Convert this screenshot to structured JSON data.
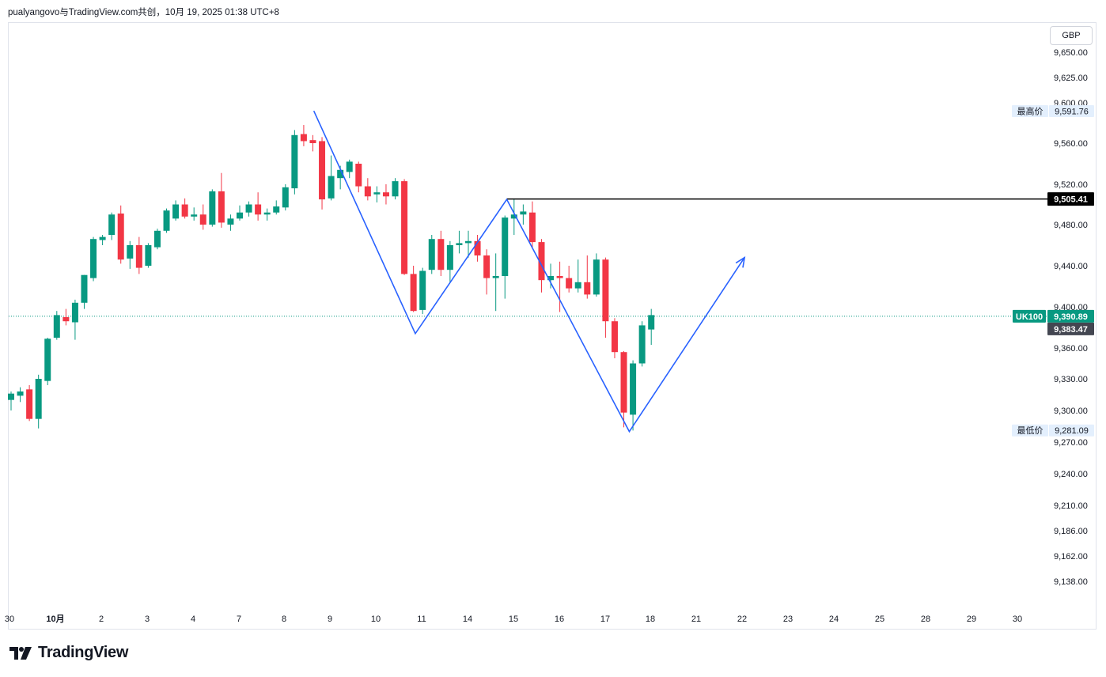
{
  "header": {
    "text": "pualyangovo与TradingView.com共创，10月 19, 2025 01:38 UTC+8"
  },
  "currency_label": "GBP",
  "logo_text": "TradingView",
  "colors": {
    "up": "#089981",
    "down": "#f23645",
    "drawing": "#2962ff",
    "hline": "#000000",
    "dotted_line": "#089981"
  },
  "chart_data": {
    "type": "candlestick",
    "symbol": "UK100",
    "currency": "GBP",
    "last_price": "9,390.89",
    "countdown_price": "9,383.47",
    "hline_price": "9,505.41",
    "high_label": "最高价",
    "high_value": "9,591.76",
    "low_label": "最低价",
    "low_value": "9,281.09",
    "y_ticks": [
      {
        "label": "9,650.00",
        "value": 9650
      },
      {
        "label": "9,625.00",
        "value": 9625
      },
      {
        "label": "9,600.00",
        "value": 9600
      },
      {
        "label": "9,560.00",
        "value": 9560
      },
      {
        "label": "9,520.00",
        "value": 9520
      },
      {
        "label": "9,480.00",
        "value": 9480
      },
      {
        "label": "9,440.00",
        "value": 9440
      },
      {
        "label": "9,400.00",
        "value": 9400
      },
      {
        "label": "9,360.00",
        "value": 9360
      },
      {
        "label": "9,330.00",
        "value": 9330
      },
      {
        "label": "9,300.00",
        "value": 9300
      },
      {
        "label": "9,270.00",
        "value": 9270
      },
      {
        "label": "9,240.00",
        "value": 9240
      },
      {
        "label": "9,210.00",
        "value": 9210
      },
      {
        "label": "9,186.00",
        "value": 9186
      },
      {
        "label": "9,162.00",
        "value": 9162
      },
      {
        "label": "9,138.00",
        "value": 9138
      }
    ],
    "x_ticks": [
      "30",
      "10月",
      "2",
      "3",
      "4",
      "7",
      "8",
      "9",
      "10",
      "11",
      "14",
      "15",
      "16",
      "17",
      "18",
      "21",
      "22",
      "23",
      "24",
      "25",
      "28",
      "29",
      "30"
    ],
    "candles": [
      {
        "o": 9310,
        "h": 9318,
        "l": 9300,
        "c": 9316
      },
      {
        "o": 9314,
        "h": 9322,
        "l": 9308,
        "c": 9318
      },
      {
        "o": 9320,
        "h": 9324,
        "l": 9290,
        "c": 9292
      },
      {
        "o": 9292,
        "h": 9334,
        "l": 9283,
        "c": 9330
      },
      {
        "o": 9328,
        "h": 9370,
        "l": 9324,
        "c": 9369
      },
      {
        "o": 9370,
        "h": 9396,
        "l": 9368,
        "c": 9392
      },
      {
        "o": 9390,
        "h": 9398,
        "l": 9382,
        "c": 9386
      },
      {
        "o": 9385,
        "h": 9407,
        "l": 9368,
        "c": 9404
      },
      {
        "o": 9404,
        "h": 9431,
        "l": 9398,
        "c": 9431
      },
      {
        "o": 9428,
        "h": 9468,
        "l": 9425,
        "c": 9466
      },
      {
        "o": 9465,
        "h": 9470,
        "l": 9460,
        "c": 9468
      },
      {
        "o": 9470,
        "h": 9492,
        "l": 9465,
        "c": 9490
      },
      {
        "o": 9491,
        "h": 9499,
        "l": 9442,
        "c": 9446
      },
      {
        "o": 9447,
        "h": 9464,
        "l": 9437,
        "c": 9460
      },
      {
        "o": 9460,
        "h": 9468,
        "l": 9432,
        "c": 9438
      },
      {
        "o": 9440,
        "h": 9462,
        "l": 9438,
        "c": 9460
      },
      {
        "o": 9458,
        "h": 9476,
        "l": 9456,
        "c": 9474
      },
      {
        "o": 9474,
        "h": 9496,
        "l": 9472,
        "c": 9494
      },
      {
        "o": 9486,
        "h": 9504,
        "l": 9484,
        "c": 9500
      },
      {
        "o": 9500,
        "h": 9506,
        "l": 9486,
        "c": 9488
      },
      {
        "o": 9488,
        "h": 9497,
        "l": 9484,
        "c": 9490
      },
      {
        "o": 9490,
        "h": 9500,
        "l": 9475,
        "c": 9480
      },
      {
        "o": 9480,
        "h": 9515,
        "l": 9478,
        "c": 9513
      },
      {
        "o": 9513,
        "h": 9531,
        "l": 9477,
        "c": 9482
      },
      {
        "o": 9480,
        "h": 9490,
        "l": 9474,
        "c": 9486
      },
      {
        "o": 9486,
        "h": 9499,
        "l": 9484,
        "c": 9492
      },
      {
        "o": 9492,
        "h": 9503,
        "l": 9488,
        "c": 9500
      },
      {
        "o": 9500,
        "h": 9512,
        "l": 9484,
        "c": 9490
      },
      {
        "o": 9490,
        "h": 9496,
        "l": 9484,
        "c": 9492
      },
      {
        "o": 9492,
        "h": 9504,
        "l": 9490,
        "c": 9498
      },
      {
        "o": 9497,
        "h": 9520,
        "l": 9494,
        "c": 9517
      },
      {
        "o": 9516,
        "h": 9573,
        "l": 9510,
        "c": 9568
      },
      {
        "o": 9569,
        "h": 9578,
        "l": 9557,
        "c": 9562
      },
      {
        "o": 9563,
        "h": 9568,
        "l": 9552,
        "c": 9560
      },
      {
        "o": 9562,
        "h": 9566,
        "l": 9495,
        "c": 9505
      },
      {
        "o": 9506,
        "h": 9548,
        "l": 9504,
        "c": 9528
      },
      {
        "o": 9526,
        "h": 9538,
        "l": 9515,
        "c": 9534
      },
      {
        "o": 9532,
        "h": 9544,
        "l": 9526,
        "c": 9542
      },
      {
        "o": 9540,
        "h": 9542,
        "l": 9512,
        "c": 9518
      },
      {
        "o": 9518,
        "h": 9526,
        "l": 9504,
        "c": 9508
      },
      {
        "o": 9510,
        "h": 9518,
        "l": 9502,
        "c": 9512
      },
      {
        "o": 9512,
        "h": 9520,
        "l": 9500,
        "c": 9508
      },
      {
        "o": 9508,
        "h": 9526,
        "l": 9505,
        "c": 9523
      },
      {
        "o": 9523,
        "h": 9525,
        "l": 9431,
        "c": 9432
      },
      {
        "o": 9432,
        "h": 9440,
        "l": 9395,
        "c": 9396
      },
      {
        "o": 9397,
        "h": 9438,
        "l": 9393,
        "c": 9435
      },
      {
        "o": 9436,
        "h": 9470,
        "l": 9432,
        "c": 9466
      },
      {
        "o": 9466,
        "h": 9474,
        "l": 9430,
        "c": 9436
      },
      {
        "o": 9436,
        "h": 9464,
        "l": 9424,
        "c": 9460
      },
      {
        "o": 9460,
        "h": 9474,
        "l": 9452,
        "c": 9462
      },
      {
        "o": 9462,
        "h": 9474,
        "l": 9448,
        "c": 9464
      },
      {
        "o": 9464,
        "h": 9470,
        "l": 9444,
        "c": 9450
      },
      {
        "o": 9450,
        "h": 9456,
        "l": 9412,
        "c": 9428
      },
      {
        "o": 9428,
        "h": 9452,
        "l": 9396,
        "c": 9430
      },
      {
        "o": 9430,
        "h": 9489,
        "l": 9408,
        "c": 9487
      },
      {
        "o": 9486,
        "h": 9505,
        "l": 9470,
        "c": 9490
      },
      {
        "o": 9490,
        "h": 9500,
        "l": 9480,
        "c": 9493
      },
      {
        "o": 9492,
        "h": 9503,
        "l": 9458,
        "c": 9463
      },
      {
        "o": 9463,
        "h": 9466,
        "l": 9414,
        "c": 9426
      },
      {
        "o": 9426,
        "h": 9442,
        "l": 9418,
        "c": 9430
      },
      {
        "o": 9430,
        "h": 9444,
        "l": 9395,
        "c": 9428
      },
      {
        "o": 9428,
        "h": 9440,
        "l": 9414,
        "c": 9418
      },
      {
        "o": 9418,
        "h": 9446,
        "l": 9414,
        "c": 9424
      },
      {
        "o": 9424,
        "h": 9450,
        "l": 9408,
        "c": 9412
      },
      {
        "o": 9412,
        "h": 9452,
        "l": 9410,
        "c": 9446
      },
      {
        "o": 9446,
        "h": 9448,
        "l": 9370,
        "c": 9386
      },
      {
        "o": 9386,
        "h": 9389,
        "l": 9350,
        "c": 9356
      },
      {
        "o": 9356,
        "h": 9357,
        "l": 9284,
        "c": 9298
      },
      {
        "o": 9296,
        "h": 9348,
        "l": 9281,
        "c": 9345
      },
      {
        "o": 9345,
        "h": 9386,
        "l": 9342,
        "c": 9382
      },
      {
        "o": 9378,
        "h": 9398,
        "l": 9363,
        "c": 9392
      }
    ],
    "drawing_points": [
      {
        "i": 33.1,
        "v": 9592
      },
      {
        "i": 44.2,
        "v": 9374
      },
      {
        "i": 54.2,
        "v": 9505
      },
      {
        "i": 67.6,
        "v": 9280
      },
      {
        "i": 80.2,
        "v": 9448
      }
    ],
    "hline_start_index": 54.2,
    "last_price_value": 9390.89,
    "y_range": [
      9120,
      9670
    ]
  }
}
